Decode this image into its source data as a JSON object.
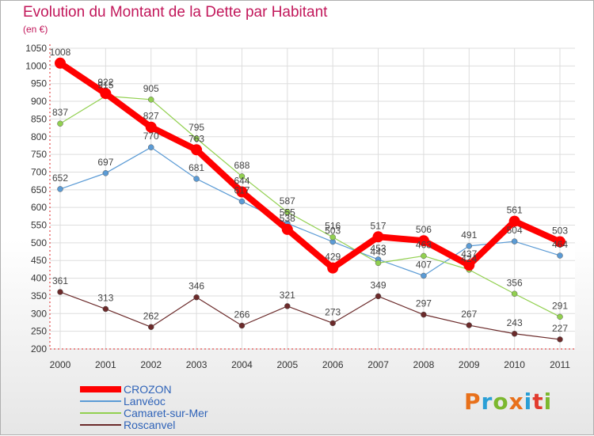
{
  "title": "Evolution du Montant de la Dette par Habitant",
  "subtitle": "(en €)",
  "logo": "Proxiti",
  "chart_data": {
    "type": "line",
    "x": [
      "2000",
      "2001",
      "2002",
      "2003",
      "2004",
      "2005",
      "2006",
      "2007",
      "2008",
      "2009",
      "2010",
      "2011"
    ],
    "ylim": [
      200,
      1050
    ],
    "yticks": [
      200,
      250,
      300,
      350,
      400,
      450,
      500,
      550,
      600,
      650,
      700,
      750,
      800,
      850,
      900,
      950,
      1000,
      1050
    ],
    "grid": true,
    "legend_position": "bottom-left",
    "series": [
      {
        "name": "CROZON",
        "color": "#ff0000",
        "values": [
          1008,
          922,
          827,
          763,
          644,
          538,
          429,
          517,
          506,
          437,
          561,
          503
        ]
      },
      {
        "name": "Lanvéoc",
        "color": "#5b9bd5",
        "values": [
          652,
          697,
          770,
          681,
          617,
          555,
          503,
          453,
          407,
          491,
          504,
          464
        ]
      },
      {
        "name": "Camaret-sur-Mer",
        "color": "#92d050",
        "values": [
          837,
          915,
          905,
          795,
          688,
          587,
          516,
          443,
          463,
          424,
          356,
          291
        ]
      },
      {
        "name": "Roscanvel",
        "color": "#6b2a2a",
        "values": [
          361,
          313,
          262,
          346,
          266,
          321,
          273,
          349,
          297,
          267,
          243,
          227
        ]
      }
    ]
  }
}
